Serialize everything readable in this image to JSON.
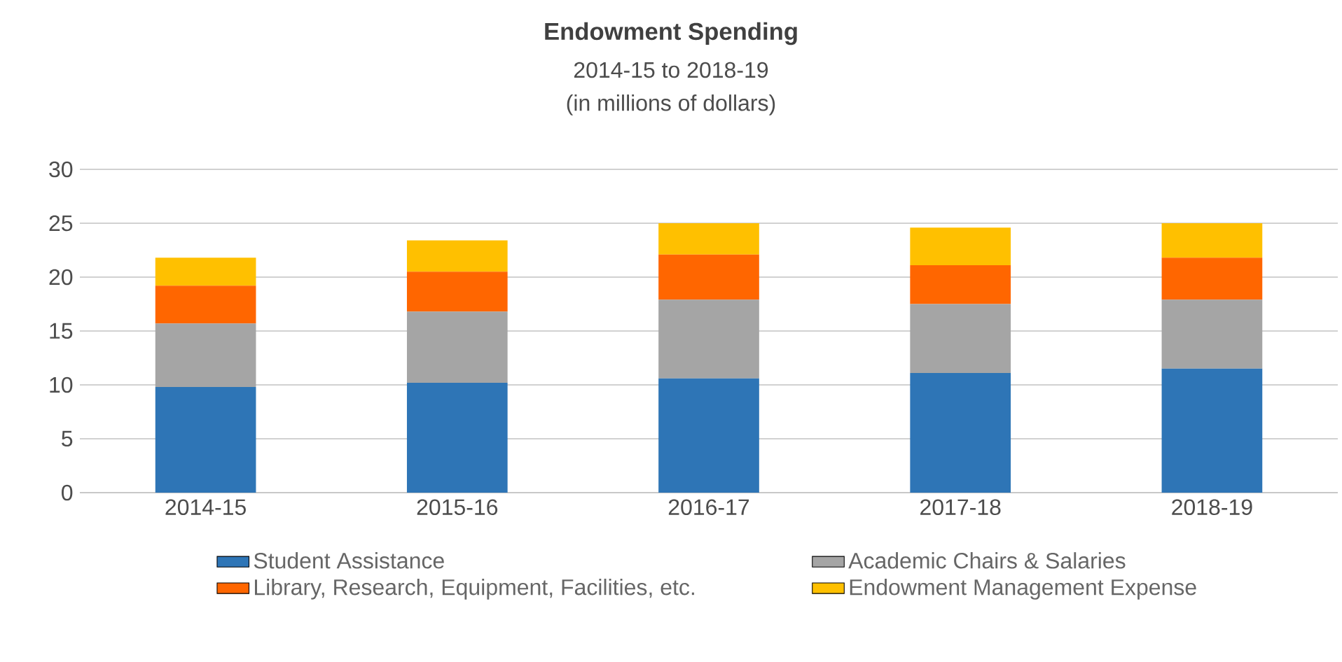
{
  "chart_data": {
    "type": "bar",
    "stacked": true,
    "title": "Endowment Spending",
    "subtitle": "2014-15 to 2018-19",
    "annotations": [
      "(in millions of dollars)"
    ],
    "categories": [
      "2014-15",
      "2015-16",
      "2016-17",
      "2017-18",
      "2018-19"
    ],
    "series": [
      {
        "name": "Student Assistance",
        "color": "#2e75b6",
        "values": [
          9.8,
          10.2,
          10.6,
          11.1,
          11.5
        ]
      },
      {
        "name": "Academic Chairs & Salaries",
        "color": "#a5a5a5",
        "values": [
          5.9,
          6.6,
          7.3,
          6.4,
          6.4
        ]
      },
      {
        "name": "Library, Research, Equipment, Facilities, etc.",
        "color": "#ff6600",
        "values": [
          3.5,
          3.7,
          4.2,
          3.6,
          3.9
        ]
      },
      {
        "name": "Endowment Management Expense",
        "color": "#ffc000",
        "values": [
          2.6,
          2.9,
          2.9,
          3.5,
          3.2
        ]
      }
    ],
    "ylim": [
      0,
      30
    ],
    "yticks": [
      0,
      5,
      10,
      15,
      20,
      25,
      30
    ],
    "grid": "y",
    "legend": "bottom"
  }
}
